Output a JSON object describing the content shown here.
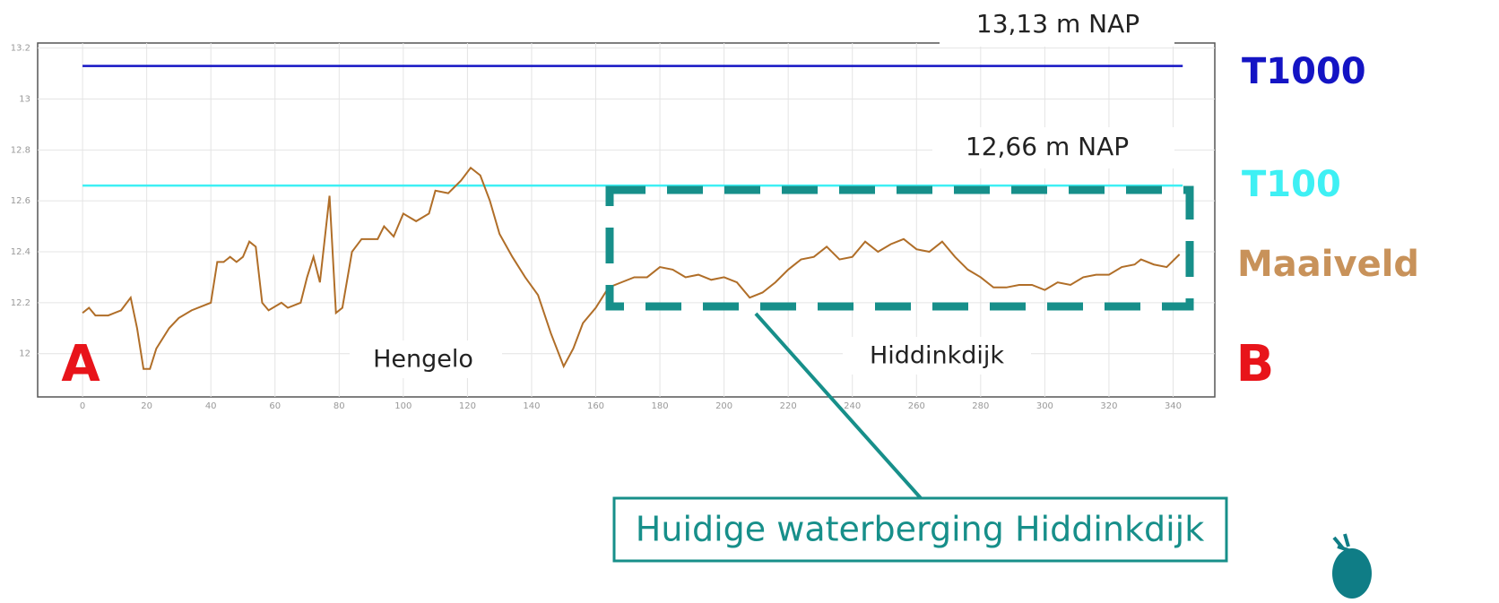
{
  "chart_data": {
    "type": "line",
    "xlim": [
      -14,
      353
    ],
    "ylim": [
      11.83,
      13.22
    ],
    "xticks": [
      0,
      20,
      40,
      60,
      80,
      100,
      120,
      140,
      160,
      180,
      200,
      220,
      240,
      260,
      280,
      300,
      320,
      340
    ],
    "yticks": [
      12,
      12.2,
      12.4,
      12.6,
      12.8,
      13,
      13.2
    ],
    "grid": true,
    "series": [
      {
        "name": "T1000",
        "color": "#1414c4",
        "x": [
          0,
          343
        ],
        "values": [
          13.13,
          13.13
        ]
      },
      {
        "name": "T100",
        "color": "#3ef0f4",
        "x": [
          0,
          343
        ],
        "values": [
          12.66,
          12.66
        ]
      },
      {
        "name": "Maaiveld",
        "color": "#b06e28",
        "x": [
          0,
          2,
          4,
          8,
          12,
          15,
          17,
          19,
          21,
          23,
          27,
          30,
          34,
          38,
          40,
          42,
          44,
          46,
          48,
          50,
          52,
          54,
          56,
          58,
          62,
          64,
          68,
          70,
          72,
          74,
          77,
          79,
          81,
          84,
          87,
          92,
          94,
          97,
          100,
          104,
          108,
          110,
          114,
          118,
          121,
          124,
          127,
          130,
          134,
          138,
          142,
          146,
          150,
          153,
          156,
          160,
          164,
          168,
          172,
          176,
          180,
          184,
          188,
          192,
          196,
          200,
          204,
          208,
          212,
          216,
          220,
          224,
          228,
          232,
          236,
          240,
          244,
          248,
          252,
          256,
          260,
          264,
          268,
          272,
          276,
          280,
          284,
          288,
          292,
          296,
          300,
          304,
          308,
          312,
          316,
          320,
          324,
          328,
          330,
          334,
          338,
          342
        ],
        "values": [
          12.16,
          12.18,
          12.15,
          12.15,
          12.17,
          12.22,
          12.1,
          11.94,
          11.94,
          12.02,
          12.1,
          12.14,
          12.17,
          12.19,
          12.2,
          12.36,
          12.36,
          12.38,
          12.36,
          12.38,
          12.44,
          12.42,
          12.2,
          12.17,
          12.2,
          12.18,
          12.2,
          12.3,
          12.38,
          12.28,
          12.62,
          12.16,
          12.18,
          12.4,
          12.45,
          12.45,
          12.5,
          12.46,
          12.55,
          12.52,
          12.55,
          12.64,
          12.63,
          12.68,
          12.73,
          12.7,
          12.6,
          12.47,
          12.38,
          12.3,
          12.23,
          12.08,
          11.95,
          12.02,
          12.12,
          12.18,
          12.26,
          12.28,
          12.3,
          12.3,
          12.34,
          12.33,
          12.3,
          12.31,
          12.29,
          12.3,
          12.28,
          12.22,
          12.24,
          12.28,
          12.33,
          12.37,
          12.38,
          12.42,
          12.37,
          12.38,
          12.44,
          12.4,
          12.43,
          12.45,
          12.41,
          12.4,
          12.44,
          12.38,
          12.33,
          12.3,
          12.26,
          12.26,
          12.27,
          12.27,
          12.25,
          12.28,
          12.27,
          12.3,
          12.31,
          12.31,
          12.34,
          12.35,
          12.37,
          12.35,
          12.34,
          12.39
        ]
      }
    ],
    "annotations": [
      "13,13 m NAP",
      "12,66 m NAP",
      "Hengelo",
      "Hiddinkdijk",
      "A",
      "B",
      "Huidige waterberging Hiddinkdijk"
    ]
  }
}
